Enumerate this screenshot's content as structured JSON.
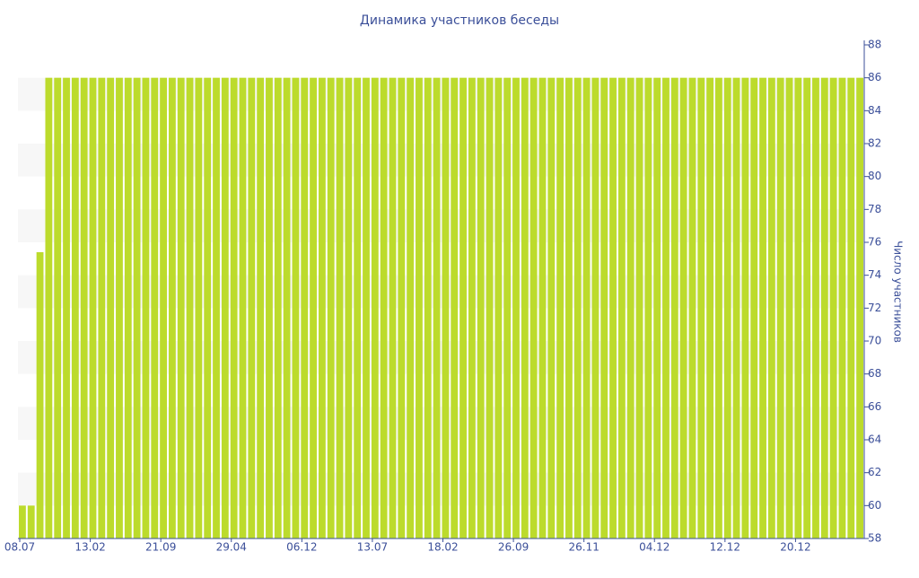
{
  "chart_data": {
    "type": "bar",
    "title": "Динамика участников беседы",
    "y_label": "Число участников",
    "categories": [
      "08.07",
      null,
      null,
      null,
      null,
      null,
      null,
      null,
      "13.02",
      null,
      null,
      null,
      null,
      null,
      null,
      null,
      "21.09",
      null,
      null,
      null,
      null,
      null,
      null,
      null,
      "29.04",
      null,
      null,
      null,
      null,
      null,
      null,
      null,
      "06.12",
      null,
      null,
      null,
      null,
      null,
      null,
      null,
      "13.07",
      null,
      null,
      null,
      null,
      null,
      null,
      null,
      "18.02",
      null,
      null,
      null,
      null,
      null,
      null,
      null,
      "26.09",
      null,
      null,
      null,
      null,
      null,
      null,
      null,
      "26.11",
      null,
      null,
      null,
      null,
      null,
      null,
      null,
      "04.12",
      null,
      null,
      null,
      null,
      null,
      null,
      null,
      "12.12",
      null,
      null,
      null,
      null,
      null,
      null,
      null,
      "20.12",
      null,
      null,
      null,
      null,
      null,
      null,
      null
    ],
    "values": [
      60,
      60,
      75.4,
      86,
      86,
      86,
      86,
      86,
      86,
      86,
      86,
      86,
      86,
      86,
      86,
      86,
      86,
      86,
      86,
      86,
      86,
      86,
      86,
      86,
      86,
      86,
      86,
      86,
      86,
      86,
      86,
      86,
      86,
      86,
      86,
      86,
      86,
      86,
      86,
      86,
      86,
      86,
      86,
      86,
      86,
      86,
      86,
      86,
      86,
      86,
      86,
      86,
      86,
      86,
      86,
      86,
      86,
      86,
      86,
      86,
      86,
      86,
      86,
      86,
      86,
      86,
      86,
      86,
      86,
      86,
      86,
      86,
      86,
      86,
      86,
      86,
      86,
      86,
      86,
      86,
      86,
      86,
      86,
      86,
      86,
      86,
      86,
      86,
      86,
      86,
      86,
      86,
      86,
      86,
      86,
      86
    ],
    "color": "#bcdb2c",
    "ylim": [
      58,
      88
    ],
    "yticks": [
      58,
      60,
      62,
      64,
      66,
      68,
      70,
      72,
      74,
      76,
      78,
      80,
      82,
      84,
      86,
      88
    ],
    "y_axis_side": "right"
  }
}
